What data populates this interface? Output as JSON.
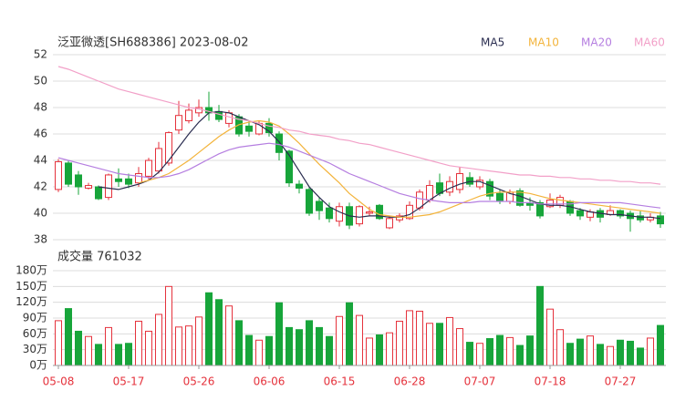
{
  "chart_data": [
    {
      "type": "candlestick",
      "title": "泛亚微透[SH688386] 2023-08-02",
      "categories": [
        "05-08",
        null,
        null,
        null,
        null,
        null,
        null,
        "05-17",
        null,
        null,
        null,
        null,
        null,
        null,
        "05-26",
        null,
        null,
        null,
        null,
        null,
        null,
        "06-06",
        null,
        null,
        null,
        null,
        null,
        null,
        "06-15",
        null,
        null,
        null,
        null,
        null,
        null,
        "06-28",
        null,
        null,
        null,
        null,
        null,
        null,
        "07-07",
        null,
        null,
        null,
        null,
        null,
        null,
        "07-18",
        null,
        null,
        null,
        null,
        null,
        null,
        "07-27",
        null,
        null,
        null,
        null
      ],
      "open": [
        41.8,
        43.8,
        42.9,
        41.9,
        42.0,
        41.2,
        42.6,
        42.6,
        42.3,
        42.8,
        43.2,
        43.8,
        46.3,
        47.0,
        47.6,
        48.0,
        47.7,
        46.8,
        47.3,
        46.6,
        46.0,
        46.8,
        46.0,
        44.7,
        42.2,
        41.8,
        40.9,
        40.4,
        39.4,
        40.5,
        39.2,
        40.0,
        40.6,
        38.9,
        39.5,
        39.6,
        40.4,
        41.0,
        42.3,
        41.6,
        41.8,
        42.7,
        42.0,
        42.4,
        41.5,
        40.9,
        41.7,
        40.8,
        40.8,
        40.5,
        40.6,
        40.9,
        40.2,
        39.7,
        40.2,
        39.9,
        40.2,
        40.0,
        39.8,
        39.5,
        39.8
      ],
      "high": [
        44.1,
        44.0,
        43.2,
        42.3,
        42.1,
        43.0,
        43.4,
        43.0,
        43.5,
        44.2,
        45.4,
        46.2,
        48.5,
        48.3,
        48.6,
        49.2,
        48.2,
        47.8,
        47.5,
        47.0,
        47.0,
        47.2,
        46.2,
        44.8,
        42.5,
        42.0,
        41.2,
        40.8,
        40.8,
        40.8,
        40.6,
        40.5,
        40.7,
        39.8,
        40.0,
        40.9,
        41.8,
        42.5,
        43.0,
        42.8,
        43.5,
        43.1,
        42.8,
        42.6,
        41.8,
        41.8,
        41.9,
        41.2,
        41.0,
        41.5,
        41.4,
        41.0,
        40.4,
        40.3,
        40.4,
        40.6,
        40.3,
        40.2,
        40.2,
        40.0,
        40.1
      ],
      "low": [
        41.6,
        42.0,
        41.4,
        41.8,
        41.0,
        41.0,
        42.0,
        41.9,
        42.0,
        42.5,
        43.0,
        43.6,
        46.0,
        46.8,
        47.3,
        47.0,
        46.9,
        46.5,
        45.8,
        45.8,
        45.9,
        45.8,
        44.0,
        42.0,
        41.5,
        39.8,
        39.5,
        39.3,
        39.0,
        38.8,
        39.0,
        39.8,
        39.5,
        38.8,
        39.3,
        39.5,
        40.2,
        40.8,
        41.3,
        41.3,
        41.5,
        42.0,
        41.8,
        41.0,
        40.7,
        40.7,
        40.5,
        40.2,
        39.6,
        40.4,
        40.4,
        39.8,
        39.5,
        39.4,
        39.3,
        39.8,
        39.6,
        38.6,
        39.3,
        39.3,
        38.9
      ],
      "close": [
        43.9,
        42.2,
        42.0,
        42.1,
        41.1,
        42.9,
        42.4,
        42.2,
        43.0,
        44.0,
        44.9,
        46.1,
        47.4,
        47.8,
        48.0,
        47.6,
        47.1,
        47.6,
        46.0,
        46.2,
        46.8,
        46.1,
        44.6,
        42.3,
        41.9,
        40.0,
        40.2,
        39.6,
        40.5,
        39.1,
        40.5,
        40.1,
        39.6,
        39.6,
        39.8,
        40.6,
        41.6,
        42.1,
        41.5,
        42.4,
        43.0,
        42.2,
        42.5,
        41.3,
        40.9,
        41.6,
        40.6,
        40.6,
        39.8,
        41.0,
        41.2,
        40.0,
        39.8,
        40.1,
        39.7,
        40.2,
        39.8,
        39.6,
        39.5,
        39.7,
        39.2
      ],
      "up_color": "#e5323c",
      "down_color": "#17a53a",
      "series": [
        {
          "name": "MA5",
          "color": "#2a2d50",
          "values": [
            null,
            null,
            null,
            null,
            42.0,
            41.9,
            41.8,
            42.0,
            42.2,
            42.5,
            43.1,
            44.0,
            45.0,
            46.0,
            46.9,
            47.6,
            47.7,
            47.6,
            47.3,
            47.0,
            46.7,
            46.2,
            45.4,
            44.4,
            43.2,
            42.0,
            41.2,
            40.5,
            40.1,
            39.8,
            39.7,
            39.8,
            39.8,
            39.7,
            39.7,
            39.9,
            40.4,
            41.0,
            41.5,
            41.9,
            42.2,
            42.4,
            42.4,
            42.1,
            41.8,
            41.5,
            41.3,
            41.0,
            40.7,
            40.6,
            40.6,
            40.5,
            40.3,
            40.1,
            40.0,
            39.9,
            39.9,
            39.8,
            39.7,
            39.7,
            39.6
          ]
        },
        {
          "name": "MA10",
          "color": "#f3b43c",
          "values": [
            null,
            null,
            null,
            null,
            null,
            null,
            null,
            null,
            42.3,
            42.5,
            42.7,
            43.0,
            43.5,
            44.0,
            44.6,
            45.2,
            45.8,
            46.3,
            46.7,
            46.9,
            47.0,
            46.9,
            46.6,
            46.0,
            45.3,
            44.5,
            43.7,
            43.0,
            42.3,
            41.5,
            40.9,
            40.3,
            39.9,
            39.8,
            39.7,
            39.7,
            39.8,
            39.9,
            40.1,
            40.4,
            40.7,
            41.0,
            41.3,
            41.5,
            41.6,
            41.6,
            41.6,
            41.5,
            41.3,
            41.1,
            41.0,
            40.9,
            40.8,
            40.7,
            40.6,
            40.5,
            40.4,
            40.3,
            40.2,
            40.1,
            40.0
          ]
        },
        {
          "name": "MA20",
          "color": "#b57ee0",
          "values": [
            44.2,
            44.0,
            43.8,
            43.6,
            43.4,
            43.2,
            43.0,
            42.9,
            42.8,
            42.7,
            42.7,
            42.8,
            43.0,
            43.3,
            43.7,
            44.1,
            44.5,
            44.8,
            45.0,
            45.1,
            45.2,
            45.3,
            45.2,
            45.0,
            44.7,
            44.4,
            44.1,
            43.8,
            43.4,
            43.0,
            42.7,
            42.4,
            42.1,
            41.8,
            41.5,
            41.3,
            41.1,
            41.0,
            40.9,
            40.8,
            40.8,
            40.8,
            40.9,
            40.9,
            40.9,
            40.9,
            40.8,
            40.8,
            40.7,
            40.7,
            40.7,
            40.7,
            40.8,
            40.8,
            40.8,
            40.8,
            40.8,
            40.7,
            40.6,
            40.5,
            40.4
          ]
        },
        {
          "name": "MA60",
          "color": "#f2a0c8",
          "values": [
            51.1,
            50.9,
            50.6,
            50.3,
            50.0,
            49.7,
            49.4,
            49.2,
            49.0,
            48.8,
            48.6,
            48.4,
            48.2,
            48.0,
            47.9,
            47.7,
            47.5,
            47.3,
            47.1,
            47.0,
            46.8,
            46.6,
            46.5,
            46.3,
            46.2,
            46.0,
            45.9,
            45.8,
            45.6,
            45.5,
            45.3,
            45.2,
            45.0,
            44.8,
            44.6,
            44.4,
            44.2,
            44.0,
            43.8,
            43.6,
            43.5,
            43.4,
            43.3,
            43.2,
            43.1,
            43.0,
            42.9,
            42.9,
            42.8,
            42.8,
            42.7,
            42.7,
            42.6,
            42.6,
            42.5,
            42.5,
            42.4,
            42.4,
            42.3,
            42.3,
            42.2
          ]
        }
      ],
      "ylim": [
        38,
        52
      ],
      "yticks": [
        38,
        40,
        42,
        44,
        46,
        48,
        50,
        52
      ],
      "grid": true
    },
    {
      "type": "bar",
      "title": "成交量 761032",
      "values": [
        85,
        108,
        65,
        55,
        40,
        72,
        40,
        42,
        84,
        65,
        97,
        150,
        73,
        75,
        92,
        138,
        125,
        113,
        85,
        57,
        48,
        55,
        119,
        72,
        68,
        85,
        72,
        55,
        93,
        119,
        95,
        52,
        58,
        62,
        84,
        104,
        103,
        80,
        80,
        91,
        70,
        44,
        42,
        51,
        57,
        53,
        38,
        56,
        150,
        107,
        68,
        42,
        50,
        56,
        40,
        36,
        48,
        46,
        33,
        52,
        76
      ],
      "ylim": [
        0,
        180
      ],
      "yticks": [
        {
          "value": 0,
          "label": "0万"
        },
        {
          "value": 30,
          "label": "30万"
        },
        {
          "value": 60,
          "label": "60万"
        },
        {
          "value": 90,
          "label": "90万"
        },
        {
          "value": 120,
          "label": "120万"
        },
        {
          "value": 150,
          "label": "150万"
        },
        {
          "value": 180,
          "label": "180万"
        }
      ],
      "grid": true
    }
  ]
}
